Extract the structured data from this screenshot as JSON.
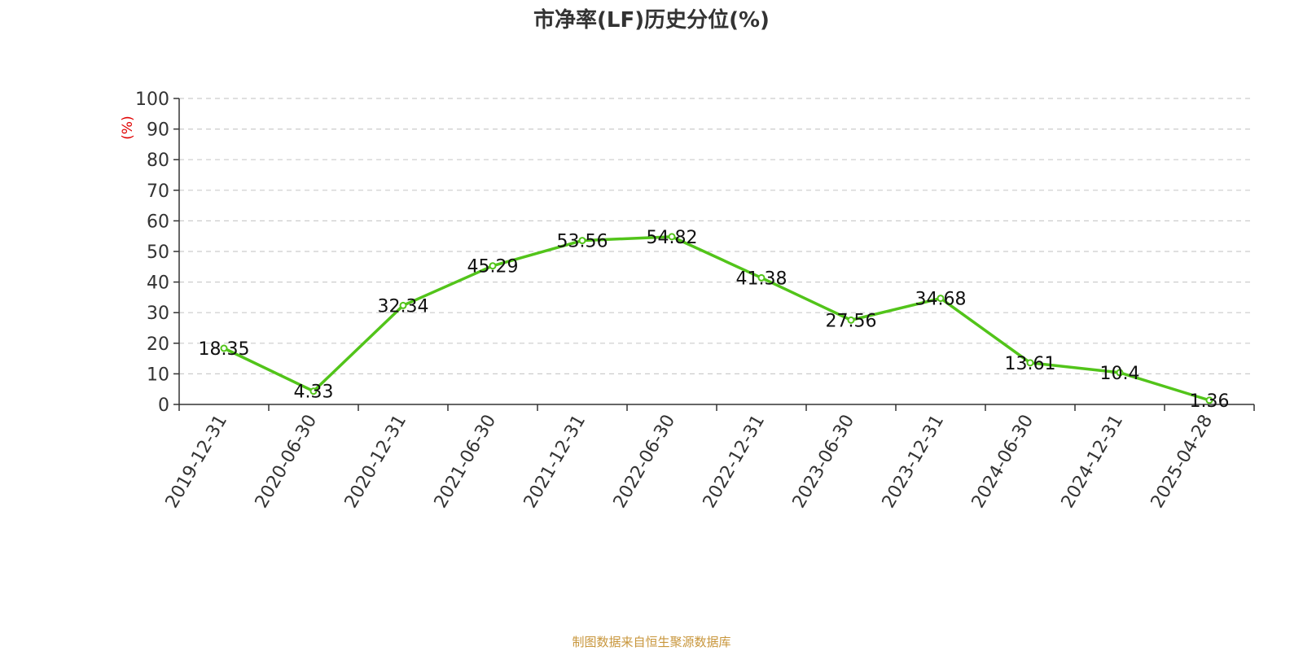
{
  "title": "市净率(LF)历史分位(%)",
  "source": "制图数据来自恒生聚源数据库",
  "colors": {
    "line": "#52c41a",
    "unit_label": "#e00000",
    "source": "#c8963c",
    "grid": "#cccccc",
    "axis": "#333333"
  },
  "chart_data": {
    "type": "line",
    "title": "市净率(LF)历史分位(%)",
    "xlabel": "",
    "ylabel": "(%)",
    "ylim": [
      0,
      100
    ],
    "yticks": [
      0,
      10,
      20,
      30,
      40,
      50,
      60,
      70,
      80,
      90,
      100
    ],
    "grid": true,
    "categories": [
      "2019-12-31",
      "2020-06-30",
      "2020-12-31",
      "2021-06-30",
      "2021-12-31",
      "2022-06-30",
      "2022-12-31",
      "2023-06-30",
      "2023-12-31",
      "2024-06-30",
      "2024-12-31",
      "2025-04-28"
    ],
    "series": [
      {
        "values": [
          18.35,
          4.33,
          32.34,
          45.29,
          53.56,
          54.82,
          41.38,
          27.56,
          34.68,
          13.61,
          10.4,
          1.36
        ],
        "labels": [
          "18.35",
          "4.33",
          "32.34",
          "45.29",
          "53.56",
          "54.82",
          "41.38",
          "27.56",
          "34.68",
          "13.61",
          "10.4",
          "1.36"
        ]
      }
    ]
  }
}
